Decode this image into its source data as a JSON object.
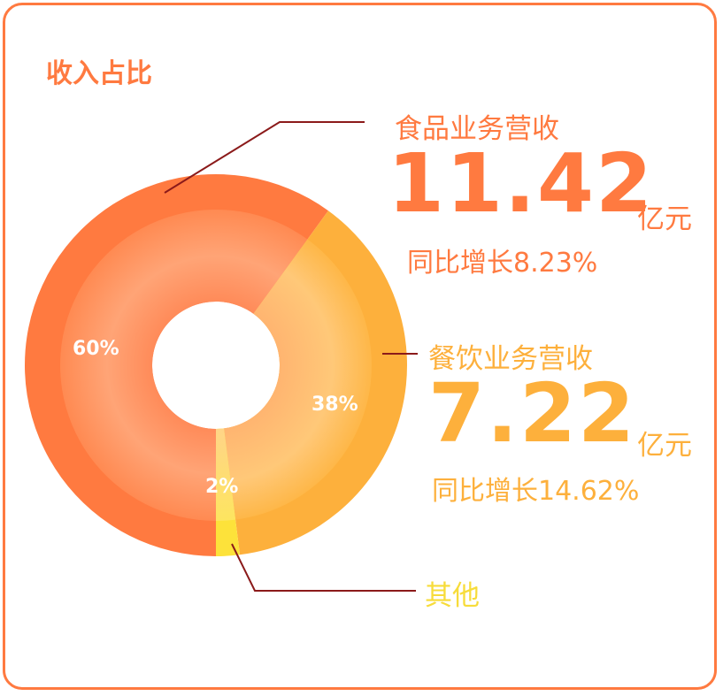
{
  "title": "收入占比",
  "colors": {
    "food": "#FF7A40",
    "food_inner": "#FFA476",
    "dining": "#FDB03C",
    "dining_inner": "#FFC878",
    "other": "#FDE23A",
    "leader": "#8B1A1A",
    "border": "#FF7A40"
  },
  "chart_data": {
    "type": "pie",
    "donut": true,
    "title": "收入占比",
    "slices": [
      {
        "name": "食品业务营收",
        "percent": 60,
        "label": "60%",
        "value": "11.42",
        "unit": "亿元",
        "yoy": "同比增长8.23%"
      },
      {
        "name": "餐饮业务营收",
        "percent": 38,
        "label": "38%",
        "value": "7.22",
        "unit": "亿元",
        "yoy": "同比增长14.62%"
      },
      {
        "name": "其他",
        "percent": 2,
        "label": "2%"
      }
    ]
  }
}
